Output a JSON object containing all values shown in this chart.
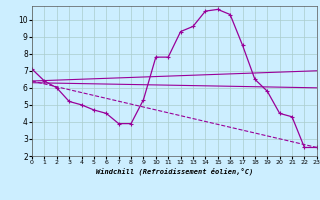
{
  "xlabel": "Windchill (Refroidissement éolien,°C)",
  "xlim": [
    0,
    23
  ],
  "ylim": [
    2,
    10.8
  ],
  "yticks": [
    2,
    3,
    4,
    5,
    6,
    7,
    8,
    9,
    10
  ],
  "xticks": [
    0,
    1,
    2,
    3,
    4,
    5,
    6,
    7,
    8,
    9,
    10,
    11,
    12,
    13,
    14,
    15,
    16,
    17,
    18,
    19,
    20,
    21,
    22,
    23
  ],
  "bg_color": "#cceeff",
  "grid_color": "#aacccc",
  "line_color": "#990099",
  "line0": {
    "x": [
      0,
      1,
      2,
      3,
      4,
      5,
      6,
      7,
      8,
      9,
      10,
      11,
      12,
      13,
      14,
      15,
      16,
      17,
      18,
      19,
      20,
      21,
      22,
      23
    ],
    "y": [
      7.1,
      6.4,
      6.0,
      5.2,
      5.0,
      4.7,
      4.5,
      3.9,
      3.9,
      5.3,
      7.8,
      7.8,
      9.3,
      9.6,
      10.5,
      10.6,
      10.3,
      8.5,
      6.5,
      5.8,
      4.5,
      4.3,
      2.5,
      2.5
    ]
  },
  "line1": {
    "x": [
      0,
      23
    ],
    "y": [
      6.4,
      7.0
    ]
  },
  "line2": {
    "x": [
      0,
      23
    ],
    "y": [
      6.3,
      6.0
    ]
  },
  "line3": {
    "x": [
      0,
      23
    ],
    "y": [
      6.4,
      2.5
    ]
  }
}
